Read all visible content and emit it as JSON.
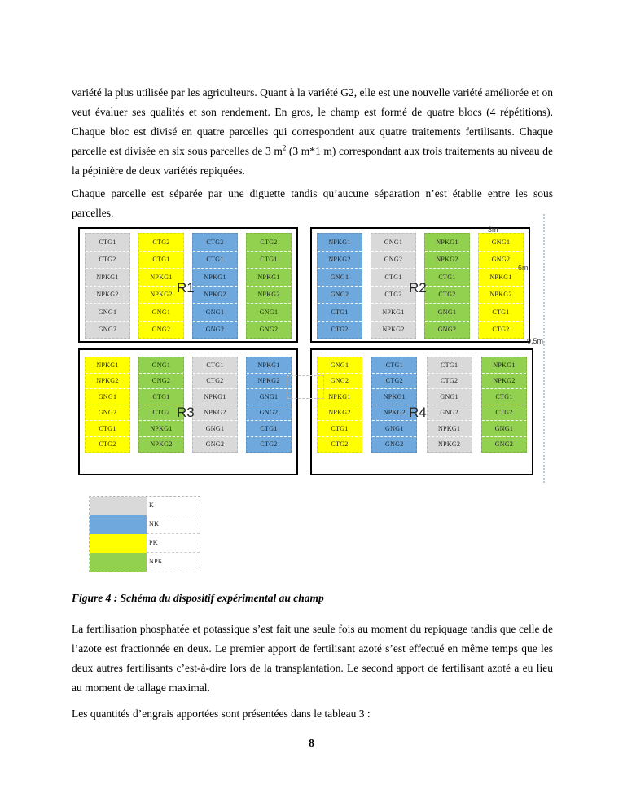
{
  "page": {
    "paragraph1_part1": "variété la plus utilisée par les agriculteurs. Quant à la variété G2, elle est une nouvelle variété améliorée et on veut évaluer ses qualités et son rendement. En gros, le champ est formé de quatre blocs (4 répétitions). Chaque bloc est divisé en quatre parcelles qui correspondent aux quatre traitements fertilisants. Chaque parcelle est divisée en six sous parcelles de 3 m",
    "paragraph1_sup": "2",
    "paragraph1_part2": " (3 m*1 m) correspondant aux trois traitements au niveau de la pépinière de deux variétés repiquées.",
    "paragraph2": "Chaque parcelle est séparée par une diguette tandis qu’aucune séparation n’est établie entre les sous parcelles.",
    "caption": "Figure 4 : Schéma du dispositif expérimental au champ",
    "paragraph3": "La fertilisation phosphatée et potassique s’est fait une seule fois au moment du repiquage tandis que celle de l’azote est fractionnée en deux. Le premier apport de fertilisant azoté s’est effectué en même temps que les deux autres fertilisants c’est-à-dire lors de la transplantation. Le second apport de fertilisant azoté a eu lieu au moment de tallage maximal.",
    "paragraph4": "Les quantités d’engrais apportées sont présentées dans le tableau 3 :",
    "page_number": "8"
  },
  "figure": {
    "dimension_labels": {
      "width": "3m",
      "height": "6m",
      "gap": "0,5m"
    },
    "colors": {
      "K": "#d9d9d9",
      "NK": "#6fa8dc",
      "PK": "#ffff00",
      "NPK": "#92d050"
    },
    "blocks": [
      {
        "name": "R1",
        "columns": [
          {
            "treatment": "K",
            "cells": [
              "CTG1",
              "CTG2",
              "NPKG1",
              "NPKG2",
              "GNG1",
              "GNG2"
            ]
          },
          {
            "treatment": "PK",
            "cells": [
              "CTG2",
              "CTG1",
              "NPKG1",
              "NPKG2",
              "GNG1",
              "GNG2"
            ]
          },
          {
            "treatment": "NK",
            "cells": [
              "CTG2",
              "CTG1",
              "NPKG1",
              "NPKG2",
              "GNG1",
              "GNG2"
            ]
          },
          {
            "treatment": "NPK",
            "cells": [
              "CTG2",
              "CTG1",
              "NPKG1",
              "NPKG2",
              "GNG1",
              "GNG2"
            ]
          }
        ]
      },
      {
        "name": "R2",
        "columns": [
          {
            "treatment": "NK",
            "cells": [
              "NPKG1",
              "NPKG2",
              "GNG1",
              "GNG2",
              "CTG1",
              "CTG2"
            ]
          },
          {
            "treatment": "K",
            "cells": [
              "GNG1",
              "GNG2",
              "CTG1",
              "CTG2",
              "NPKG1",
              "NPKG2"
            ]
          },
          {
            "treatment": "NPK",
            "cells": [
              "NPKG1",
              "NPKG2",
              "CTG1",
              "CTG2",
              "GNG1",
              "GNG2"
            ]
          },
          {
            "treatment": "PK",
            "cells": [
              "GNG1",
              "GNG2",
              "NPKG1",
              "NPKG2",
              "CTG1",
              "CTG2"
            ]
          }
        ]
      },
      {
        "name": "R3",
        "columns": [
          {
            "treatment": "PK",
            "cells": [
              "NPKG1",
              "NPKG2",
              "GNG1",
              "GNG2",
              "CTG1",
              "CTG2"
            ]
          },
          {
            "treatment": "NPK",
            "cells": [
              "GNG1",
              "GNG2",
              "CTG1",
              "CTG2",
              "NPKG1",
              "NPKG2"
            ]
          },
          {
            "treatment": "K",
            "cells": [
              "CTG1",
              "CTG2",
              "NPKG1",
              "NPKG2",
              "GNG1",
              "GNG2"
            ]
          },
          {
            "treatment": "NK",
            "cells": [
              "NPKG1",
              "NPKG2",
              "GNG1",
              "GNG2",
              "CTG1",
              "CTG2"
            ]
          }
        ]
      },
      {
        "name": "R4",
        "columns": [
          {
            "treatment": "PK",
            "cells": [
              "GNG1",
              "GNG2",
              "NPKG1",
              "NPKG2",
              "CTG1",
              "CTG2"
            ]
          },
          {
            "treatment": "NK",
            "cells": [
              "CTG1",
              "CTG2",
              "NPKG1",
              "NPKG2",
              "GNG1",
              "GNG2"
            ]
          },
          {
            "treatment": "K",
            "cells": [
              "CTG1",
              "CTG2",
              "GNG1",
              "GNG2",
              "NPKG1",
              "NPKG2"
            ]
          },
          {
            "treatment": "NPK",
            "cells": [
              "NPKG1",
              "NPKG2",
              "CTG1",
              "CTG2",
              "GNG1",
              "GNG2"
            ]
          }
        ]
      }
    ],
    "legend": [
      {
        "label": "K"
      },
      {
        "label": "NK"
      },
      {
        "label": "PK"
      },
      {
        "label": "NPK"
      }
    ]
  }
}
